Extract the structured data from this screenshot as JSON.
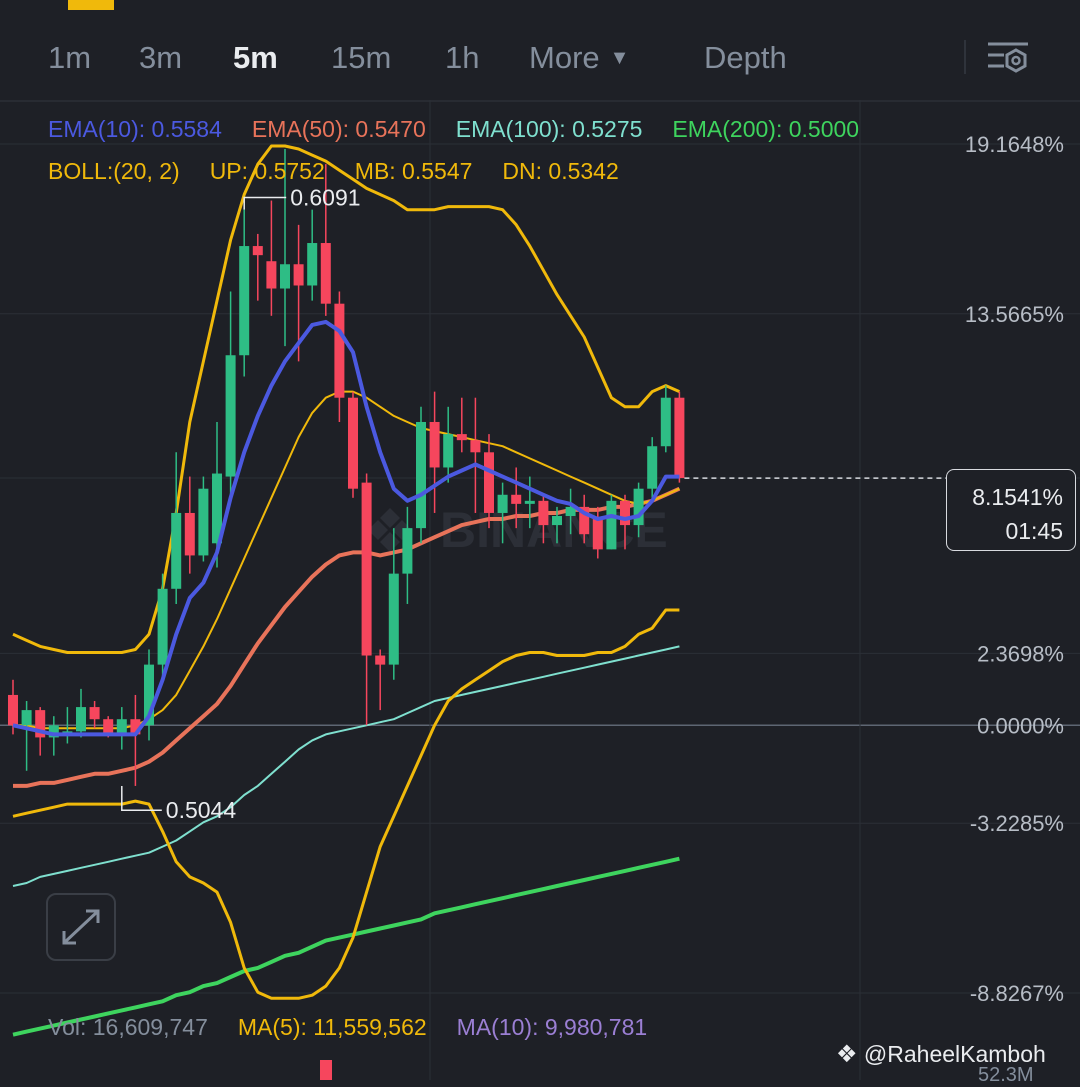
{
  "tabs": [
    {
      "label": "1m",
      "active": false
    },
    {
      "label": "3m",
      "active": false
    },
    {
      "label": "5m",
      "active": true
    },
    {
      "label": "15m",
      "active": false
    },
    {
      "label": "1h",
      "active": false
    },
    {
      "label": "More",
      "active": false
    },
    {
      "label": "Depth",
      "active": false
    }
  ],
  "legend_ema": {
    "ema10": "EMA(10): 0.5584",
    "ema50": "EMA(50): 0.5470",
    "ema100": "EMA(100): 0.5275",
    "ema200": "EMA(200): 0.5000"
  },
  "legend_boll": {
    "params": "BOLL:(20, 2)",
    "up": "UP: 0.5752",
    "mb": "MB: 0.5547",
    "dn": "DN: 0.5342"
  },
  "axis": {
    "labels": [
      "19.1648%",
      "13.5665%",
      "8.1541%",
      "2.3698%",
      "0.0000%",
      "-3.2285%",
      "-8.8267%"
    ]
  },
  "markers": {
    "high": "0.6091",
    "low": "0.5044"
  },
  "price_badge": {
    "value": "8.1541%",
    "countdown": "01:45"
  },
  "volume": {
    "vol": "Vol: 16,609,747",
    "ma5": "MA(5): 11,559,562",
    "ma10": "MA(10): 9,980,781",
    "bottom_label": "52.3M"
  },
  "watermark": {
    "brand": "BINANCE",
    "credit": "@RaheelKamboh"
  },
  "colors": {
    "background": "#1e2026",
    "up": "#2ebd85",
    "down": "#f6465d",
    "ema10": "#4b59e0",
    "ema50": "#e8735a",
    "ema100": "#7fe0cf",
    "ema200": "#3ed45e",
    "boll": "#f0b90b",
    "muted": "#848e9c"
  },
  "chart_data": {
    "type": "candlestick",
    "interval": "5m",
    "y_unit": "percent change",
    "ylim": [
      -8.8267,
      19.1648
    ],
    "candles": [
      {
        "o": 1.0,
        "h": 1.5,
        "l": -0.3,
        "c": 0.0
      },
      {
        "o": 0.0,
        "h": 0.8,
        "l": -1.5,
        "c": 0.5
      },
      {
        "o": 0.5,
        "h": 0.6,
        "l": -1.0,
        "c": -0.4
      },
      {
        "o": -0.4,
        "h": 0.3,
        "l": -1.0,
        "c": 0.0
      },
      {
        "o": -0.3,
        "h": 0.6,
        "l": -0.6,
        "c": -0.2
      },
      {
        "o": -0.2,
        "h": 1.2,
        "l": -0.4,
        "c": 0.6
      },
      {
        "o": 0.6,
        "h": 0.8,
        "l": -0.1,
        "c": 0.2
      },
      {
        "o": 0.2,
        "h": 0.3,
        "l": -0.4,
        "c": -0.3
      },
      {
        "o": -0.3,
        "h": 0.6,
        "l": -0.8,
        "c": 0.2
      },
      {
        "o": 0.2,
        "h": 1.0,
        "l": -2.0,
        "c": -0.3
      },
      {
        "o": 0.0,
        "h": 2.5,
        "l": -0.5,
        "c": 2.0
      },
      {
        "o": 2.0,
        "h": 5.0,
        "l": 1.5,
        "c": 4.5
      },
      {
        "o": 4.5,
        "h": 9.0,
        "l": 4.0,
        "c": 7.0
      },
      {
        "o": 7.0,
        "h": 8.2,
        "l": 5.0,
        "c": 5.6
      },
      {
        "o": 5.6,
        "h": 8.2,
        "l": 5.4,
        "c": 7.8
      },
      {
        "o": 6.0,
        "h": 10.0,
        "l": 5.2,
        "c": 8.3
      },
      {
        "o": 8.2,
        "h": 14.3,
        "l": 7.5,
        "c": 12.2
      },
      {
        "o": 12.2,
        "h": 17.0,
        "l": 11.5,
        "c": 15.8
      },
      {
        "o": 15.8,
        "h": 16.2,
        "l": 14.0,
        "c": 15.5
      },
      {
        "o": 15.3,
        "h": 17.3,
        "l": 13.5,
        "c": 14.4
      },
      {
        "o": 14.4,
        "h": 19.0,
        "l": 12.5,
        "c": 15.2
      },
      {
        "o": 15.2,
        "h": 16.5,
        "l": 12.0,
        "c": 14.5
      },
      {
        "o": 14.5,
        "h": 17.0,
        "l": 14.0,
        "c": 15.9
      },
      {
        "o": 15.9,
        "h": 18.5,
        "l": 13.5,
        "c": 13.9
      },
      {
        "o": 13.9,
        "h": 14.3,
        "l": 10.0,
        "c": 10.8
      },
      {
        "o": 10.8,
        "h": 11.0,
        "l": 7.5,
        "c": 7.8
      },
      {
        "o": 8.0,
        "h": 8.3,
        "l": 0.0,
        "c": 2.3
      },
      {
        "o": 2.3,
        "h": 2.5,
        "l": 0.5,
        "c": 2.0
      },
      {
        "o": 2.0,
        "h": 6.5,
        "l": 1.5,
        "c": 5.0
      },
      {
        "o": 5.0,
        "h": 7.2,
        "l": 4.0,
        "c": 6.5
      },
      {
        "o": 6.5,
        "h": 10.5,
        "l": 6.0,
        "c": 10.0
      },
      {
        "o": 10.0,
        "h": 11.0,
        "l": 7.0,
        "c": 8.5
      },
      {
        "o": 8.5,
        "h": 10.5,
        "l": 8.0,
        "c": 9.6
      },
      {
        "o": 9.6,
        "h": 10.8,
        "l": 9.0,
        "c": 9.4
      },
      {
        "o": 9.4,
        "h": 10.8,
        "l": 7.0,
        "c": 9.0
      },
      {
        "o": 9.0,
        "h": 9.6,
        "l": 6.5,
        "c": 7.0
      },
      {
        "o": 7.0,
        "h": 8.0,
        "l": 6.0,
        "c": 7.6
      },
      {
        "o": 7.6,
        "h": 8.5,
        "l": 6.5,
        "c": 7.3
      },
      {
        "o": 7.3,
        "h": 8.2,
        "l": 6.5,
        "c": 7.4
      },
      {
        "o": 7.4,
        "h": 7.6,
        "l": 6.0,
        "c": 6.6
      },
      {
        "o": 6.6,
        "h": 7.2,
        "l": 6.0,
        "c": 6.9
      },
      {
        "o": 6.9,
        "h": 7.8,
        "l": 6.3,
        "c": 7.2
      },
      {
        "o": 7.2,
        "h": 7.6,
        "l": 6.0,
        "c": 6.3
      },
      {
        "o": 6.8,
        "h": 7.2,
        "l": 5.5,
        "c": 5.8
      },
      {
        "o": 5.8,
        "h": 7.6,
        "l": 5.8,
        "c": 7.4
      },
      {
        "o": 7.4,
        "h": 7.6,
        "l": 5.8,
        "c": 6.6
      },
      {
        "o": 6.6,
        "h": 8.0,
        "l": 6.2,
        "c": 7.8
      },
      {
        "o": 7.8,
        "h": 9.5,
        "l": 7.5,
        "c": 9.2
      },
      {
        "o": 9.2,
        "h": 11.2,
        "l": 9.0,
        "c": 10.8
      },
      {
        "o": 10.8,
        "h": 11.0,
        "l": 8.0,
        "c": 8.15
      }
    ],
    "ema10": [
      0.0,
      -0.1,
      -0.2,
      -0.3,
      -0.3,
      -0.3,
      -0.3,
      -0.3,
      -0.3,
      -0.3,
      0.3,
      1.5,
      3.0,
      4.2,
      4.7,
      5.7,
      7.5,
      9.0,
      10.2,
      11.2,
      12.0,
      12.6,
      13.2,
      13.3,
      13.0,
      12.3,
      10.5,
      9.0,
      7.8,
      7.4,
      7.6,
      7.9,
      8.2,
      8.4,
      8.6,
      8.4,
      8.2,
      8.0,
      7.8,
      7.6,
      7.4,
      7.3,
      7.0,
      6.8,
      6.9,
      6.8,
      6.9,
      7.4,
      8.2,
      8.2
    ],
    "ema50": [
      -2.0,
      -2.0,
      -1.9,
      -1.9,
      -1.8,
      -1.7,
      -1.6,
      -1.6,
      -1.5,
      -1.4,
      -1.2,
      -0.9,
      -0.5,
      -0.1,
      0.3,
      0.7,
      1.3,
      2.0,
      2.7,
      3.3,
      3.9,
      4.4,
      4.9,
      5.3,
      5.6,
      5.7,
      5.7,
      5.6,
      5.7,
      5.8,
      6.0,
      6.2,
      6.4,
      6.6,
      6.7,
      6.8,
      6.8,
      6.9,
      6.9,
      7.0,
      7.0,
      7.1,
      7.1,
      7.1,
      7.2,
      7.2,
      7.3,
      7.4,
      7.6,
      7.8
    ],
    "ema100": [
      -5.3,
      -5.2,
      -5.0,
      -4.9,
      -4.8,
      -4.7,
      -4.6,
      -4.5,
      -4.4,
      -4.3,
      -4.2,
      -4.0,
      -3.8,
      -3.5,
      -3.2,
      -3.0,
      -2.7,
      -2.3,
      -2.0,
      -1.6,
      -1.2,
      -0.8,
      -0.5,
      -0.3,
      -0.2,
      -0.1,
      0.0,
      0.1,
      0.2,
      0.4,
      0.6,
      0.8,
      0.9,
      1.0,
      1.1,
      1.2,
      1.3,
      1.4,
      1.5,
      1.6,
      1.7,
      1.8,
      1.9,
      2.0,
      2.1,
      2.2,
      2.3,
      2.4,
      2.5,
      2.6
    ],
    "ema200": [
      -10.2,
      -10.1,
      -10.0,
      -9.9,
      -9.8,
      -9.7,
      -9.6,
      -9.5,
      -9.4,
      -9.3,
      -9.2,
      -9.1,
      -8.9,
      -8.8,
      -8.6,
      -8.5,
      -8.3,
      -8.1,
      -8.0,
      -7.8,
      -7.6,
      -7.5,
      -7.3,
      -7.1,
      -7.0,
      -6.9,
      -6.8,
      -6.7,
      -6.6,
      -6.5,
      -6.4,
      -6.2,
      -6.1,
      -6.0,
      -5.9,
      -5.8,
      -5.7,
      -5.6,
      -5.5,
      -5.4,
      -5.3,
      -5.2,
      -5.1,
      -5.0,
      -4.9,
      -4.8,
      -4.7,
      -4.6,
      -4.5,
      -4.4
    ],
    "boll_up": [
      3.0,
      2.8,
      2.6,
      2.5,
      2.4,
      2.4,
      2.4,
      2.4,
      2.4,
      2.5,
      3.0,
      4.5,
      7.0,
      10.0,
      12.0,
      14.0,
      16.0,
      17.5,
      18.5,
      19.1,
      19.1,
      19.0,
      18.8,
      18.6,
      18.3,
      18.0,
      17.7,
      17.5,
      17.3,
      17.0,
      17.0,
      17.0,
      17.1,
      17.1,
      17.1,
      17.1,
      17.0,
      16.5,
      15.8,
      15.0,
      14.2,
      13.5,
      12.8,
      11.8,
      10.8,
      10.5,
      10.5,
      11.0,
      11.2,
      11.0
    ],
    "boll_mid": [
      0.0,
      0.0,
      -0.1,
      -0.1,
      -0.1,
      -0.1,
      -0.1,
      -0.1,
      -0.1,
      0.0,
      0.2,
      0.5,
      1.0,
      1.8,
      2.6,
      3.5,
      4.5,
      5.5,
      6.5,
      7.5,
      8.5,
      9.5,
      10.3,
      10.8,
      11.0,
      11.0,
      10.8,
      10.5,
      10.2,
      10.0,
      9.8,
      9.7,
      9.6,
      9.5,
      9.4,
      9.3,
      9.2,
      9.0,
      8.8,
      8.6,
      8.4,
      8.2,
      8.0,
      7.8,
      7.6,
      7.4,
      7.3,
      7.4,
      7.6,
      7.8
    ],
    "boll_dn": [
      -3.0,
      -2.9,
      -2.8,
      -2.7,
      -2.6,
      -2.6,
      -2.6,
      -2.6,
      -2.6,
      -2.5,
      -2.6,
      -3.5,
      -4.5,
      -5.0,
      -5.2,
      -5.5,
      -6.5,
      -8.0,
      -8.8,
      -9.0,
      -9.0,
      -9.0,
      -8.9,
      -8.6,
      -8.0,
      -7.0,
      -5.5,
      -4.0,
      -3.0,
      -2.0,
      -1.0,
      0.0,
      0.8,
      1.2,
      1.5,
      1.8,
      2.1,
      2.3,
      2.4,
      2.4,
      2.3,
      2.3,
      2.3,
      2.4,
      2.4,
      2.6,
      3.0,
      3.2,
      3.8,
      3.8
    ]
  }
}
